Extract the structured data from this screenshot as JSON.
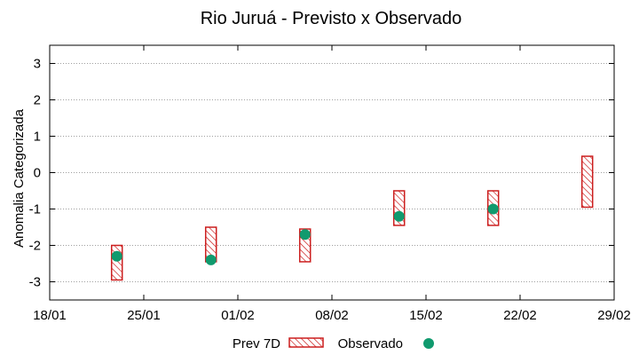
{
  "colors": {
    "forecast": "#cc1f1f",
    "observed": "#109a6e",
    "grid": "#a0a0a0"
  },
  "chart_data": {
    "type": "floating-bar-with-points",
    "title": "Rio Juruá - Previsto x Observado",
    "xlabel": "",
    "ylabel": "Anomalia Categorizada",
    "x_ticks": [
      "18/01",
      "25/01",
      "01/02",
      "08/02",
      "15/02",
      "22/02",
      "29/02"
    ],
    "x_tick_days": [
      0,
      7,
      14,
      21,
      28,
      35,
      42
    ],
    "xlim_days": [
      0,
      42
    ],
    "ylim": [
      -3.5,
      3.5
    ],
    "y_ticks": [
      -3,
      -2,
      -1,
      0,
      1,
      2,
      3
    ],
    "grid": true,
    "legend_position": "bottom-center",
    "series": [
      {
        "name": "Prev 7D",
        "kind": "range",
        "x_days": [
          5,
          12,
          19,
          26,
          33,
          40
        ],
        "low": [
          -2.95,
          -2.45,
          -2.45,
          -1.45,
          -1.45,
          -0.95
        ],
        "high": [
          -2.0,
          -1.5,
          -1.55,
          -0.5,
          -0.5,
          0.45
        ]
      },
      {
        "name": "Observado",
        "kind": "point",
        "x_days": [
          5,
          12,
          19,
          26,
          33
        ],
        "values": [
          -2.3,
          -2.4,
          -1.7,
          -1.2,
          -1.0
        ]
      }
    ]
  }
}
